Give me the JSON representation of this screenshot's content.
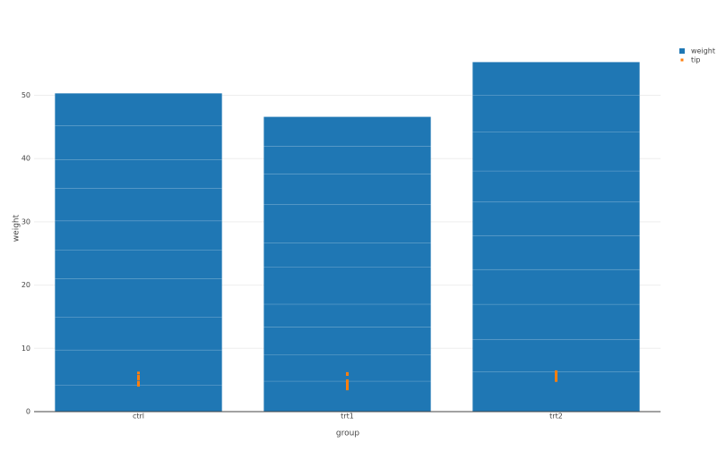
{
  "chart_data": {
    "type": "bar",
    "barmode": "stack",
    "x_label": "group",
    "y_label": "weight",
    "categories": [
      "ctrl",
      "trt1",
      "trt2"
    ],
    "series": [
      {
        "name": "weight",
        "type": "bar",
        "color": "#1f77b4",
        "values": [
          [
            4.17,
            5.58,
            5.18,
            6.11,
            4.5,
            4.61,
            5.17,
            4.53,
            5.33,
            5.14
          ],
          [
            4.81,
            4.17,
            4.41,
            3.59,
            5.87,
            3.83,
            6.03,
            4.89,
            4.32,
            4.69
          ],
          [
            6.31,
            5.12,
            5.54,
            5.5,
            5.37,
            5.29,
            4.92,
            6.15,
            5.8,
            5.26
          ]
        ]
      },
      {
        "name": "tip",
        "type": "scatter",
        "color": "#ff7f0e",
        "values": [
          [
            4.17,
            5.58,
            5.18,
            6.11,
            4.5,
            4.61,
            5.17,
            4.53,
            5.33,
            5.14
          ],
          [
            4.81,
            4.17,
            4.41,
            3.59,
            5.87,
            3.83,
            6.03,
            4.89,
            4.32,
            4.69
          ],
          [
            6.31,
            5.12,
            5.54,
            5.5,
            5.37,
            5.29,
            4.92,
            6.15,
            5.8,
            5.26
          ]
        ]
      }
    ],
    "ylim": [
      0,
      58
    ],
    "yticks": [
      0,
      10,
      20,
      30,
      40,
      50
    ],
    "grid": true,
    "legend": "right"
  }
}
